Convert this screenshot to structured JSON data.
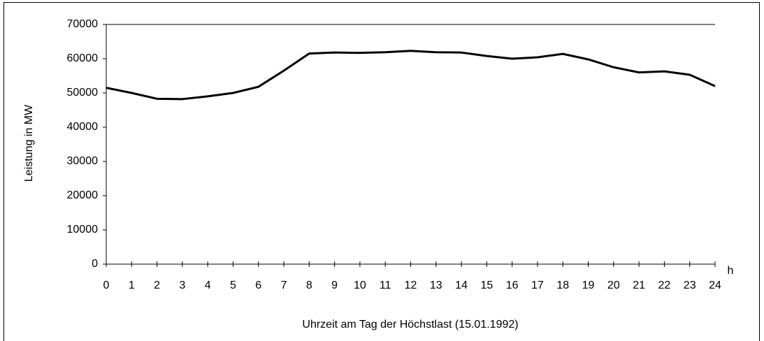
{
  "chart_data": {
    "type": "line",
    "x_label": "Uhrzeit am Tag der Höchstlast (15.01.1992)",
    "x_unit": "h",
    "y_label": "Leistung in MW",
    "x": [
      0,
      1,
      2,
      3,
      4,
      5,
      6,
      7,
      8,
      9,
      10,
      11,
      12,
      13,
      14,
      15,
      16,
      17,
      18,
      19,
      20,
      21,
      22,
      23,
      24
    ],
    "series": [
      {
        "color": "#000000",
        "values": [
          51500,
          50000,
          48300,
          48200,
          49000,
          50000,
          51800,
          56500,
          61500,
          61800,
          61700,
          61900,
          62300,
          61900,
          61800,
          60800,
          60000,
          60400,
          61400,
          59800,
          57500,
          56000,
          56300,
          55300,
          52000
        ]
      }
    ],
    "xlim": [
      0,
      24
    ],
    "xticks": [
      0,
      1,
      2,
      3,
      4,
      5,
      6,
      7,
      8,
      9,
      10,
      11,
      12,
      13,
      14,
      15,
      16,
      17,
      18,
      19,
      20,
      21,
      22,
      23,
      24
    ],
    "ylim": [
      0,
      70000
    ],
    "yticks": [
      0,
      10000,
      20000,
      30000,
      40000,
      50000,
      60000,
      70000
    ],
    "grid": false
  }
}
